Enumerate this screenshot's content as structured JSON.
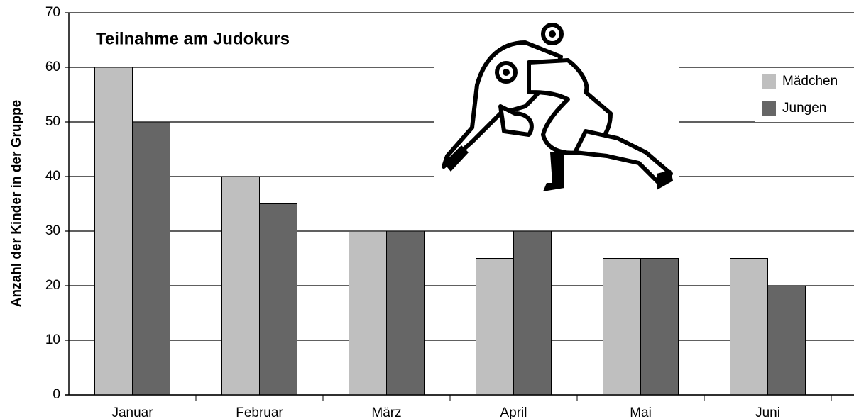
{
  "chart_data": {
    "type": "bar",
    "title": "Teilnahme am Judokurs",
    "y_label": "Anzahl der Kinder in der Gruppe",
    "categories": [
      "Januar",
      "Februar",
      "März",
      "April",
      "Mai",
      "Juni"
    ],
    "series": [
      {
        "name": "Mädchen",
        "color": "#bfbfbf",
        "values": [
          60,
          40,
          30,
          25,
          25,
          25
        ]
      },
      {
        "name": "Jungen",
        "color": "#666666",
        "values": [
          50,
          35,
          30,
          30,
          25,
          20
        ]
      }
    ],
    "ylim": [
      0,
      70
    ],
    "yticks": [
      0,
      10,
      20,
      30,
      40,
      50,
      60,
      70
    ],
    "grid": true,
    "legend": "right"
  }
}
